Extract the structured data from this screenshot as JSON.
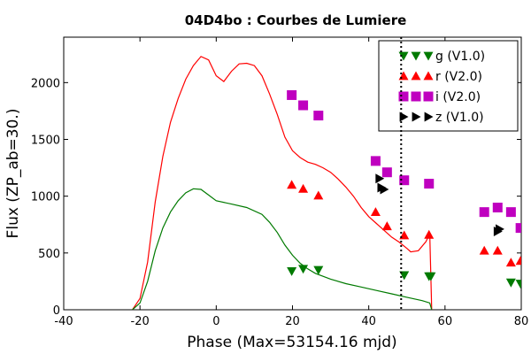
{
  "chart_data": {
    "type": "scatter",
    "title": "04D4bo : Courbes de Lumiere",
    "xlabel": "Phase (Max=53154.16 mjd)",
    "ylabel": "Flux (ZP_ab=30.)",
    "xlim": [
      -40,
      80
    ],
    "ylim": [
      0,
      2400
    ],
    "xticks": [
      "-40",
      "-20",
      "0",
      "20",
      "40",
      "60",
      "80"
    ],
    "yticks": [
      "0",
      "500",
      "1000",
      "1500",
      "2000"
    ],
    "vline_x": 48.5,
    "legend": {
      "placement": "top-right",
      "entries": [
        "g (V1.0)",
        "r (V2.0)",
        "i (V2.0)",
        "z (V1.0)"
      ]
    },
    "series": [
      {
        "name": "g (V1.0)",
        "marker": "triangle-down",
        "color": "#007a00",
        "points": [
          [
            19.8,
            340
          ],
          [
            22.8,
            360
          ],
          [
            26.8,
            350
          ],
          [
            49.3,
            305
          ],
          [
            55.8,
            295
          ],
          [
            56.3,
            295
          ],
          [
            77.3,
            240
          ],
          [
            79.8,
            230
          ]
        ]
      },
      {
        "name": "r (V2.0)",
        "marker": "triangle-up",
        "color": "#ff0000",
        "points": [
          [
            19.8,
            1100
          ],
          [
            22.8,
            1065
          ],
          [
            26.8,
            1005
          ],
          [
            41.8,
            860
          ],
          [
            44.8,
            735
          ],
          [
            49.3,
            655
          ],
          [
            55.8,
            660
          ],
          [
            70.3,
            520
          ],
          [
            73.8,
            520
          ],
          [
            77.3,
            415
          ],
          [
            79.8,
            430
          ]
        ]
      },
      {
        "name": "i (V2.0)",
        "marker": "square",
        "color": "#bf00bf",
        "points": [
          [
            19.8,
            1890
          ],
          [
            22.8,
            1800
          ],
          [
            26.8,
            1710
          ],
          [
            41.8,
            1310
          ],
          [
            44.8,
            1210
          ],
          [
            49.3,
            1140
          ],
          [
            55.8,
            1110
          ],
          [
            70.3,
            860
          ],
          [
            73.8,
            900
          ],
          [
            77.3,
            860
          ],
          [
            79.8,
            720
          ]
        ]
      },
      {
        "name": "z (V1.0)",
        "marker": "triangle-right",
        "color": "#000000",
        "points": [
          [
            42.8,
            1155
          ],
          [
            43.3,
            1075
          ],
          [
            44.0,
            1060
          ],
          [
            74.3,
            710
          ],
          [
            73.8,
            690
          ]
        ]
      }
    ],
    "curves": [
      {
        "name": "r model",
        "color": "#ff0000",
        "points": [
          [
            -22,
            0
          ],
          [
            -20,
            100
          ],
          [
            -18,
            420
          ],
          [
            -16,
            950
          ],
          [
            -14,
            1350
          ],
          [
            -12,
            1650
          ],
          [
            -10,
            1860
          ],
          [
            -8,
            2030
          ],
          [
            -6,
            2150
          ],
          [
            -4,
            2230
          ],
          [
            -2,
            2200
          ],
          [
            0,
            2060
          ],
          [
            2,
            2010
          ],
          [
            4,
            2100
          ],
          [
            6,
            2165
          ],
          [
            8,
            2170
          ],
          [
            10,
            2150
          ],
          [
            12,
            2060
          ],
          [
            14,
            1900
          ],
          [
            16,
            1720
          ],
          [
            18,
            1520
          ],
          [
            20,
            1400
          ],
          [
            22,
            1340
          ],
          [
            24,
            1300
          ],
          [
            26,
            1280
          ],
          [
            28,
            1250
          ],
          [
            30,
            1210
          ],
          [
            32,
            1150
          ],
          [
            34,
            1080
          ],
          [
            36,
            1000
          ],
          [
            38,
            900
          ],
          [
            40,
            820
          ],
          [
            42,
            760
          ],
          [
            44,
            700
          ],
          [
            46,
            640
          ],
          [
            48,
            595
          ],
          [
            50,
            540
          ],
          [
            51,
            510
          ],
          [
            53,
            520
          ],
          [
            55,
            600
          ],
          [
            56,
            670
          ],
          [
            56.5,
            0
          ]
        ]
      },
      {
        "name": "g model",
        "color": "#007a00",
        "points": [
          [
            -22,
            0
          ],
          [
            -20,
            60
          ],
          [
            -18,
            250
          ],
          [
            -16,
            520
          ],
          [
            -14,
            720
          ],
          [
            -12,
            860
          ],
          [
            -10,
            960
          ],
          [
            -8,
            1030
          ],
          [
            -6,
            1065
          ],
          [
            -4,
            1060
          ],
          [
            -2,
            1010
          ],
          [
            0,
            960
          ],
          [
            4,
            930
          ],
          [
            8,
            900
          ],
          [
            12,
            840
          ],
          [
            14,
            770
          ],
          [
            16,
            680
          ],
          [
            18,
            570
          ],
          [
            20,
            480
          ],
          [
            22,
            410
          ],
          [
            24,
            360
          ],
          [
            26,
            320
          ],
          [
            30,
            270
          ],
          [
            34,
            230
          ],
          [
            38,
            200
          ],
          [
            42,
            170
          ],
          [
            46,
            140
          ],
          [
            50,
            110
          ],
          [
            54,
            80
          ],
          [
            56,
            60
          ],
          [
            56.5,
            0
          ]
        ]
      }
    ]
  }
}
